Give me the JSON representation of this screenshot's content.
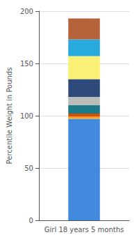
{
  "chart_data": {
    "type": "bar",
    "stacked": true,
    "categories": [
      "Girl 18 years 5 months"
    ],
    "ylabel": "Percentile Weight in Pounds",
    "series": [
      {
        "color": "#4189DD",
        "values": [
          97
        ]
      },
      {
        "color": "#F5A623",
        "values": [
          2
        ]
      },
      {
        "color": "#D94F00",
        "values": [
          3
        ]
      },
      {
        "color": "#1A7A8A",
        "values": [
          8
        ]
      },
      {
        "color": "#BBBBBB",
        "values": [
          8
        ]
      },
      {
        "color": "#2E4A7A",
        "values": [
          17
        ]
      },
      {
        "color": "#F9F075",
        "values": [
          22
        ]
      },
      {
        "color": "#29AADC",
        "values": [
          16
        ]
      },
      {
        "color": "#B5613A",
        "values": [
          20
        ]
      }
    ],
    "ylim": [
      0,
      200
    ],
    "yticks": [
      0,
      50,
      100,
      150,
      200
    ],
    "grid": true
  }
}
